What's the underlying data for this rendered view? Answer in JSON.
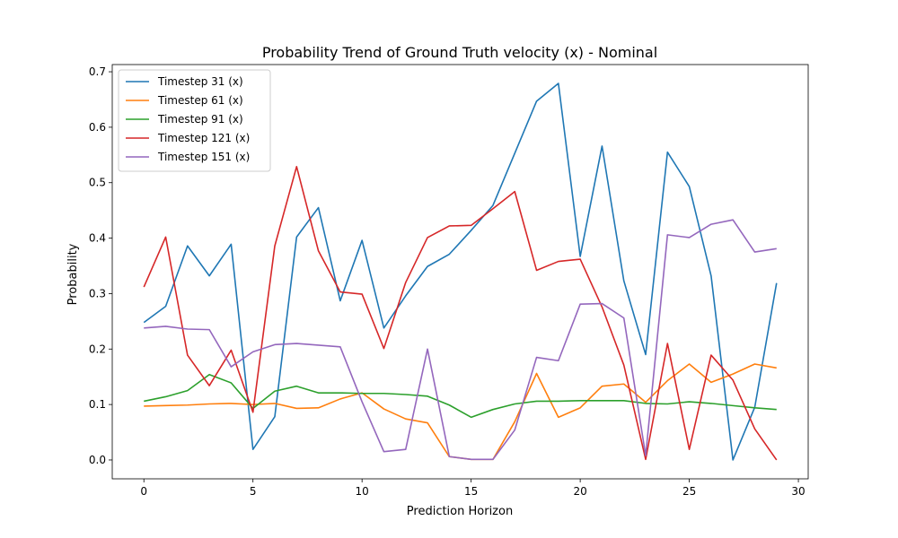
{
  "chart_data": {
    "type": "line",
    "title": "Probability Trend of Ground Truth velocity (x) - Nominal",
    "xlabel": "Prediction Horizon",
    "ylabel": "Probability",
    "xlim": [
      -1.45,
      30.45
    ],
    "ylim": [
      -0.034,
      0.713
    ],
    "xticks": [
      0,
      5,
      10,
      15,
      20,
      25,
      30
    ],
    "yticks": [
      0.0,
      0.1,
      0.2,
      0.3,
      0.4,
      0.5,
      0.6,
      0.7
    ],
    "xtick_labels": [
      "0",
      "5",
      "10",
      "15",
      "20",
      "25",
      "30"
    ],
    "ytick_labels": [
      "0.0",
      "0.1",
      "0.2",
      "0.3",
      "0.4",
      "0.5",
      "0.6",
      "0.7"
    ],
    "grid": false,
    "legend_position": "upper-left",
    "x": [
      0,
      1,
      2,
      3,
      4,
      5,
      6,
      7,
      8,
      9,
      10,
      11,
      12,
      13,
      14,
      15,
      16,
      17,
      18,
      19,
      20,
      21,
      22,
      23,
      24,
      25,
      26,
      27,
      28,
      29
    ],
    "series": [
      {
        "name": "Timestep 31 (x)",
        "color": "#1f77b4",
        "values": [
          0.248,
          0.277,
          0.386,
          0.332,
          0.389,
          0.019,
          0.078,
          0.402,
          0.455,
          0.287,
          0.396,
          0.238,
          0.296,
          0.349,
          0.371,
          0.414,
          0.459,
          0.553,
          0.647,
          0.679,
          0.367,
          0.566,
          0.323,
          0.19,
          0.555,
          0.493,
          0.332,
          0.0,
          0.095,
          0.319
        ]
      },
      {
        "name": "Timestep 61 (x)",
        "color": "#ff7f0e",
        "values": [
          0.097,
          0.098,
          0.099,
          0.101,
          0.102,
          0.1,
          0.102,
          0.093,
          0.094,
          0.11,
          0.121,
          0.092,
          0.074,
          0.067,
          0.006,
          0.001,
          0.001,
          0.069,
          0.156,
          0.077,
          0.094,
          0.133,
          0.137,
          0.104,
          0.143,
          0.173,
          0.14,
          0.155,
          0.173,
          0.166
        ]
      },
      {
        "name": "Timestep 91 (x)",
        "color": "#2ca02c",
        "values": [
          0.106,
          0.114,
          0.125,
          0.154,
          0.139,
          0.093,
          0.124,
          0.133,
          0.121,
          0.121,
          0.12,
          0.12,
          0.118,
          0.115,
          0.099,
          0.077,
          0.091,
          0.101,
          0.106,
          0.106,
          0.107,
          0.107,
          0.107,
          0.102,
          0.101,
          0.105,
          0.102,
          0.098,
          0.094,
          0.091
        ]
      },
      {
        "name": "Timestep 121 (x)",
        "color": "#d62728",
        "values": [
          0.312,
          0.402,
          0.189,
          0.134,
          0.198,
          0.086,
          0.386,
          0.529,
          0.377,
          0.303,
          0.299,
          0.201,
          0.32,
          0.401,
          0.422,
          0.423,
          0.453,
          0.484,
          0.342,
          0.358,
          0.362,
          0.276,
          0.171,
          0.001,
          0.21,
          0.019,
          0.189,
          0.144,
          0.056,
          0.0
        ]
      },
      {
        "name": "Timestep 151 (x)",
        "color": "#9467bd",
        "values": [
          0.238,
          0.241,
          0.236,
          0.235,
          0.168,
          0.195,
          0.208,
          0.21,
          0.207,
          0.204,
          0.105,
          0.015,
          0.019,
          0.2,
          0.006,
          0.001,
          0.001,
          0.054,
          0.185,
          0.179,
          0.281,
          0.282,
          0.256,
          0.008,
          0.406,
          0.401,
          0.425,
          0.433,
          0.375,
          0.381
        ]
      }
    ]
  }
}
